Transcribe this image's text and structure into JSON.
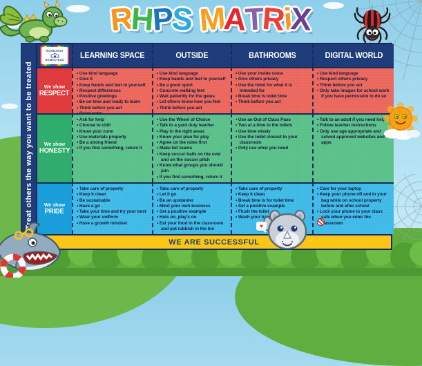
{
  "title": {
    "text": "RHPS MATRiX",
    "letters": [
      {
        "ch": "R",
        "color": "#f8951d",
        "rot": -6
      },
      {
        "ch": "H",
        "color": "#3cb54a",
        "rot": 4
      },
      {
        "ch": "P",
        "color": "#1b75bc",
        "rot": -4
      },
      {
        "ch": "S",
        "color": "#29aae1",
        "rot": 5
      },
      {
        "ch": " ",
        "color": "",
        "rot": 0
      },
      {
        "ch": "M",
        "color": "#f8a01d",
        "rot": -5
      },
      {
        "ch": "A",
        "color": "#e8262d",
        "rot": 4
      },
      {
        "ch": "T",
        "color": "#8a5fae",
        "rot": -3
      },
      {
        "ch": "R",
        "color": "#ee4036",
        "rot": 5
      },
      {
        "ch": "i",
        "color": "#f8951d",
        "rot": -4
      },
      {
        "ch": "X",
        "color": "#6a3d97",
        "rot": 4
      }
    ]
  },
  "vertical_banner": "Treat others the way you want to be treated",
  "logo": {
    "line1": "ROXBURGH",
    "line2": "HOMESTEAD"
  },
  "table": {
    "headers": [
      "LEARNING SPACE",
      "OUTSIDE",
      "BATHROOMS",
      "DIGITAL WORLD"
    ],
    "rows": [
      {
        "prefix": "We show",
        "value": "RESPECT",
        "label_bg": "#e23b3e",
        "cell_bg": "#ee6a5e",
        "cells": [
          [
            "Use kind language",
            "Give 5",
            "Keep hands and feet to yourself",
            "Respect differences",
            "Positive greetings",
            "Be on time and ready to learn",
            "Think before you act",
            "Quiet entry"
          ],
          [
            "Use kind language",
            "Keep hands and feet to yourself",
            "Be a good sport",
            "Concrete walking feet",
            "Wait patiently for the gates",
            "Let others know how you feel",
            "Think before you act"
          ],
          [
            "Use your inside voice",
            "Give others privacy",
            "Use the toilet for what it is intended for",
            "Break time is toilet time",
            "Think before you act"
          ],
          [
            "Use kind language",
            "Respect others privacy",
            "Think before you act",
            "Only take images for school work if you have permission to do so"
          ]
        ]
      },
      {
        "prefix": "We show",
        "value": "HONESTY",
        "label_bg": "#2fae6e",
        "cell_bg": "#5ec28c",
        "cells": [
          [
            "Ask for help",
            "Choose to chill",
            "Know your zone",
            "Use materials properly",
            "Be a strong friend",
            "If you find something, return it"
          ],
          [
            "Use the Wheel of Choice",
            "Talk to a yard duty teacher",
            "Play in the right areas",
            "Know your plan for play",
            "Agree on the rules first",
            "Make fair teams",
            "Keep soccer balls on the oval and on the soccer pitch",
            "Know what groups you should join",
            "If you find something, return it"
          ],
          [
            "Use an Out of Class Pass",
            "Two at a time to the toilets",
            "Use time wisely",
            "Use the toilet closest to your classroom",
            "Only use what you need"
          ],
          [
            "Talk to an adult if you need help",
            "Follow teacher instructions",
            "Only use age appropriate and school approved websites and apps"
          ]
        ]
      },
      {
        "prefix": "We show",
        "value": "PRIDE",
        "label_bg": "#189fdc",
        "cell_bg": "#42bce9",
        "cells": [
          [
            "Take care of property",
            "Keep it clean",
            "Be sustainable",
            "Have a go",
            "Take your time and try your best",
            "Wear your uniform",
            "Have a growth mindset"
          ],
          [
            "Take care of property",
            "Let it go",
            "Be an upstander",
            "Mind your own business",
            "Set a positive example",
            "Hats on, play's on",
            "Eat your food in the classroom and put rubbish in the bin"
          ],
          [
            "Take care of property",
            "Keep it clean",
            "Break time is for toilet time",
            "Set a positive example",
            "Flush the toilet",
            "Wash your hands"
          ],
          [
            "Care for your laptop",
            "Keep your phone off and in  your bag while on school property before and after school",
            "Lock your phone in your  class safe when you enter  the classroom"
          ]
        ]
      }
    ]
  },
  "footer": "WE ARE SUCCESSFUL",
  "heart_bubble": "♥",
  "colors": {
    "header_bg": "#1e3d7a",
    "banner_bg": "#1e3d7a",
    "footer_bg": "#fdc716",
    "footer_text": "#1e3d7a",
    "sky": "#a6d9ee",
    "hill": "#6cb84b",
    "bush_dark": "#4f9f33",
    "bush_light": "#6cbd47"
  },
  "characters": [
    "dragon",
    "spider",
    "sun",
    "shark",
    "rhino"
  ]
}
